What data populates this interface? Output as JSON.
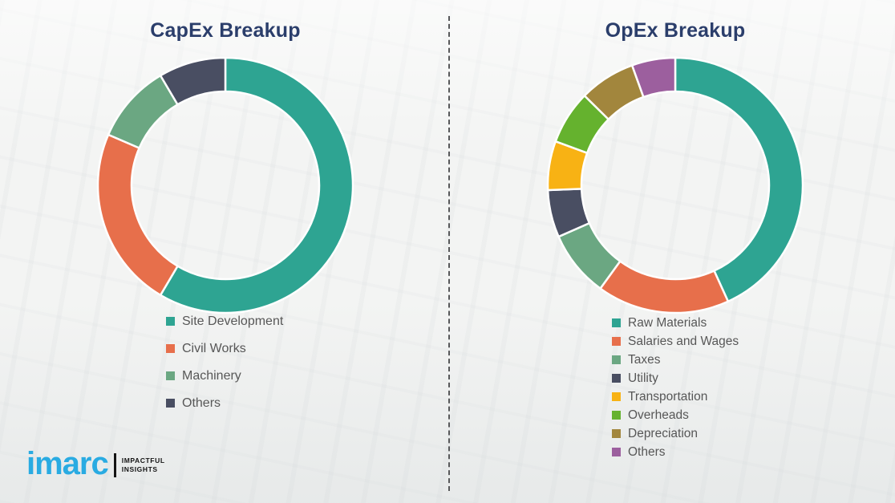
{
  "page": {
    "background_color": "#f3f4f3",
    "divider_style": "vertical-dashed",
    "divider_color": "#57585a"
  },
  "logo": {
    "brand": "imarc",
    "brand_color": "#29abe2",
    "tagline_line1": "IMPACTFUL",
    "tagline_line2": "INSIGHTS",
    "tagline_color": "#141414"
  },
  "chart_data": [
    {
      "type": "pie",
      "subtype": "donut",
      "title": "CapEx Breakup",
      "title_color": "#2b3e6b",
      "legend_position": "bottom",
      "start_angle_deg": 0,
      "direction": "clockwise",
      "labels": [
        "Site Development",
        "Civil Works",
        "Machinery",
        "Others"
      ],
      "values": [
        58.5,
        23.0,
        10.0,
        8.5
      ],
      "colors": [
        "#2ea492",
        "#e76f4b",
        "#6ba782",
        "#494e62"
      ]
    },
    {
      "type": "pie",
      "subtype": "donut",
      "title": "OpEx Breakup",
      "title_color": "#2b3e6b",
      "legend_position": "bottom",
      "start_angle_deg": 0,
      "direction": "clockwise",
      "labels": [
        "Raw Materials",
        "Salaries and Wages",
        "Taxes",
        "Utility",
        "Transportation",
        "Overheads",
        "Depreciation",
        "Others"
      ],
      "values": [
        43.2,
        16.8,
        8.4,
        6.0,
        6.2,
        6.8,
        7.1,
        5.5
      ],
      "colors": [
        "#2ea492",
        "#e76f4b",
        "#6ba782",
        "#494e62",
        "#f8b214",
        "#65b22e",
        "#a2863d",
        "#9c5f9e"
      ]
    }
  ]
}
